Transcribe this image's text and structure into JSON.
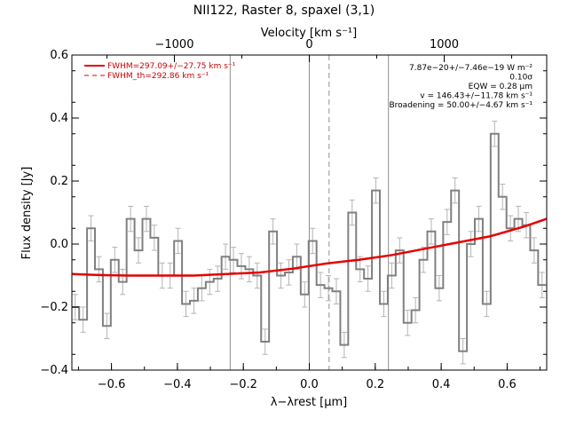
{
  "chart_data": {
    "type": "line",
    "title": "NII122, Raster 8, spaxel (3,1)",
    "xlabel": "λ−λrest [μm]",
    "ylabel": "Flux density [Jy]",
    "top_axis_label": "Velocity [km s⁻¹]",
    "xlim": [
      -0.72,
      0.72
    ],
    "ylim": [
      -0.4,
      0.6
    ],
    "x_ticks": [
      -0.6,
      -0.4,
      -0.2,
      0.0,
      0.2,
      0.4,
      0.6
    ],
    "x_tick_labels": [
      "−0.6",
      "−0.4",
      "−0.2",
      "0.0",
      "0.2",
      "0.4",
      "0.6"
    ],
    "y_ticks": [
      -0.4,
      -0.2,
      0.0,
      0.2,
      0.4,
      0.6
    ],
    "y_tick_labels": [
      "−0.4",
      "−0.2",
      "0.0",
      "0.2",
      "0.4",
      "0.6"
    ],
    "top_ticks_km_s": [
      -1000,
      0,
      1000
    ],
    "top_tick_labels": [
      "−1000",
      "0",
      "1000"
    ],
    "km_s_per_um": 2444,
    "vertical_lines_um": [
      -0.24,
      0.0,
      0.24
    ],
    "dashed_line_um": 0.06,
    "legend": {
      "placement": "top-left",
      "entries": [
        {
          "label": "FWHM=297.09+/−27.75 km s⁻¹",
          "style": "solid"
        },
        {
          "label": "FWHM_th=292.86 km s⁻¹",
          "style": "dashed"
        }
      ]
    },
    "annotations": [
      "7.87e−20+/−7.46e−19 W m⁻²",
      "0.10σ",
      "EQW = 0.28 μm",
      "v = 146.43+/−11.78 km s⁻¹",
      "Broadening = 50.00+/−4.67 km s⁻¹"
    ],
    "bin_width_um": 0.024,
    "data_step": {
      "name": "data",
      "x": [
        -0.71,
        -0.686,
        -0.662,
        -0.638,
        -0.614,
        -0.59,
        -0.566,
        -0.542,
        -0.518,
        -0.494,
        -0.47,
        -0.446,
        -0.422,
        -0.398,
        -0.374,
        -0.35,
        -0.326,
        -0.302,
        -0.278,
        -0.254,
        -0.23,
        -0.206,
        -0.182,
        -0.158,
        -0.134,
        -0.11,
        -0.086,
        -0.062,
        -0.038,
        -0.014,
        0.01,
        0.034,
        0.058,
        0.082,
        0.106,
        0.13,
        0.154,
        0.178,
        0.202,
        0.226,
        0.25,
        0.274,
        0.298,
        0.322,
        0.346,
        0.37,
        0.394,
        0.418,
        0.442,
        0.466,
        0.49,
        0.514,
        0.538,
        0.562,
        0.586,
        0.61,
        0.634,
        0.658,
        0.682,
        0.706
      ],
      "y": [
        -0.2,
        -0.24,
        0.05,
        -0.08,
        -0.26,
        -0.05,
        -0.12,
        0.08,
        -0.02,
        0.08,
        0.02,
        -0.1,
        -0.1,
        0.01,
        -0.19,
        -0.18,
        -0.14,
        -0.12,
        -0.11,
        -0.04,
        -0.05,
        -0.07,
        -0.08,
        -0.1,
        -0.31,
        0.04,
        -0.1,
        -0.09,
        -0.04,
        -0.16,
        0.01,
        -0.13,
        -0.14,
        -0.15,
        -0.32,
        0.1,
        -0.08,
        -0.11,
        0.17,
        -0.19,
        -0.1,
        -0.02,
        -0.25,
        -0.21,
        -0.05,
        0.04,
        -0.14,
        0.07,
        0.17,
        -0.34,
        0.0,
        0.08,
        -0.19,
        0.35,
        0.15,
        0.05,
        0.08,
        0.06,
        -0.02,
        -0.13
      ],
      "err": 0.04
    },
    "fit_curve": {
      "name": "fit",
      "x": [
        -0.72,
        -0.65,
        -0.55,
        -0.45,
        -0.35,
        -0.25,
        -0.15,
        -0.05,
        0.05,
        0.15,
        0.25,
        0.35,
        0.45,
        0.55,
        0.65,
        0.72
      ],
      "y": [
        -0.095,
        -0.098,
        -0.1,
        -0.1,
        -0.1,
        -0.095,
        -0.09,
        -0.078,
        -0.062,
        -0.05,
        -0.035,
        -0.015,
        0.005,
        0.025,
        0.055,
        0.08
      ]
    },
    "colors": {
      "data": "#808080",
      "error": "#b4b4b4",
      "fit": "#e60000",
      "legend_text": "#cc0000",
      "guide": "#909090"
    },
    "grid": false
  }
}
